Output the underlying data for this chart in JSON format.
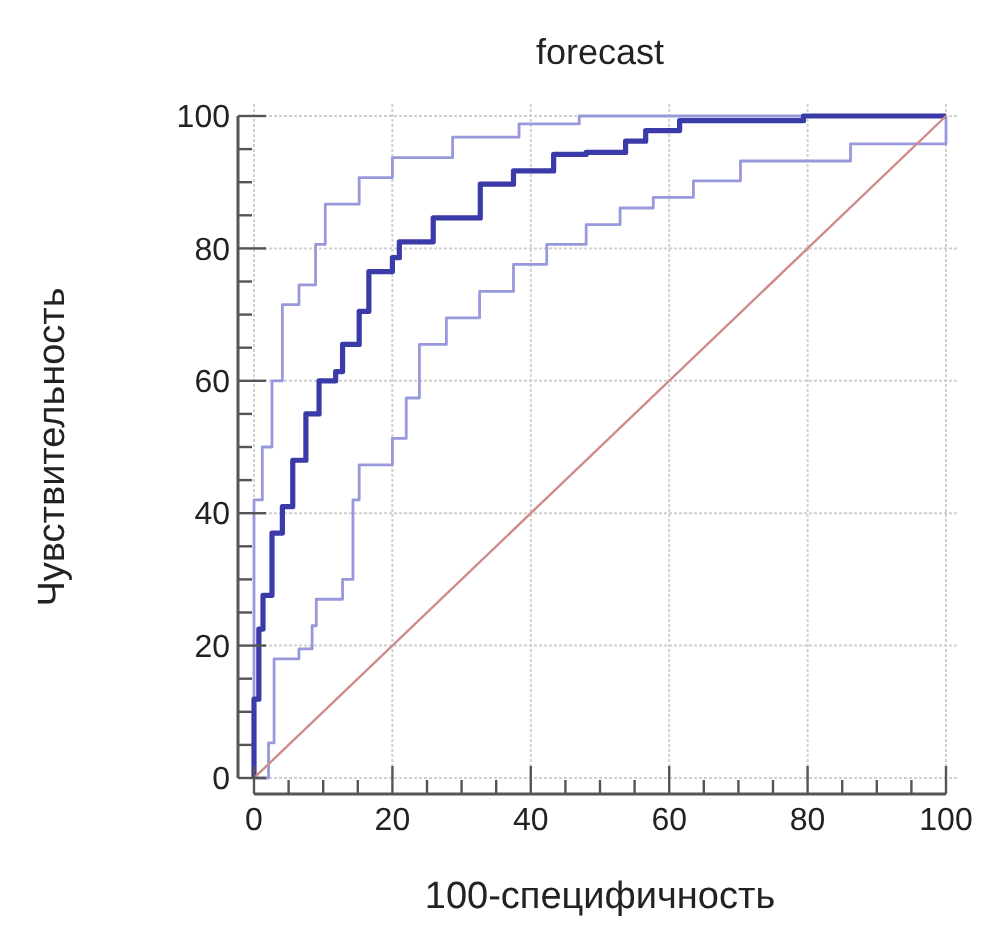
{
  "chart_data": {
    "type": "step",
    "title": "forecast",
    "xlabel": "100-специфичность",
    "ylabel": "Чувствительность",
    "xlim": [
      0,
      100
    ],
    "ylim": [
      0,
      100
    ],
    "xticks": [
      0,
      {
        "value": 5,
        "label": null
      },
      {
        "value": 10,
        "label": null
      },
      {
        "value": 15,
        "label": null
      },
      20,
      {
        "value": 25,
        "label": null
      },
      {
        "value": 30,
        "label": null
      },
      {
        "value": 35,
        "label": null
      },
      40,
      {
        "value": 45,
        "label": null
      },
      {
        "value": 50,
        "label": null
      },
      {
        "value": 55,
        "label": null
      },
      60,
      {
        "value": 65,
        "label": null
      },
      {
        "value": 70,
        "label": null
      },
      {
        "value": 75,
        "label": null
      },
      80,
      {
        "value": 85,
        "label": null
      },
      {
        "value": 90,
        "label": null
      },
      {
        "value": 95,
        "label": null
      },
      100
    ],
    "yticks": [
      0,
      {
        "value": 5,
        "label": null
      },
      {
        "value": 10,
        "label": null
      },
      {
        "value": 15,
        "label": null
      },
      20,
      {
        "value": 25,
        "label": null
      },
      {
        "value": 30,
        "label": null
      },
      {
        "value": 35,
        "label": null
      },
      40,
      {
        "value": 45,
        "label": null
      },
      {
        "value": 50,
        "label": null
      },
      {
        "value": 55,
        "label": null
      },
      60,
      {
        "value": 65,
        "label": null
      },
      {
        "value": 70,
        "label": null
      },
      {
        "value": 75,
        "label": null
      },
      80,
      {
        "value": 85,
        "label": null
      },
      {
        "value": 90,
        "label": null
      },
      {
        "value": 95,
        "label": null
      },
      100
    ],
    "grid": true,
    "series": [
      {
        "color": "#9898dc",
        "x": [
          0,
          0,
          1.2,
          2.6,
          4.1,
          6.5,
          8.9,
          10.3,
          15.2,
          20,
          28.7,
          38.3,
          47,
          100
        ],
        "values": [
          0,
          42,
          50,
          60,
          71.5,
          74.5,
          80.6,
          86.7,
          90.7,
          93.7,
          96.8,
          98.8,
          100,
          100
        ]
      },
      {
        "color": "#9898dc",
        "x": [
          0,
          2.1,
          2.9,
          6.5,
          8.4,
          9,
          12.8,
          14.3,
          15.2,
          20,
          22,
          23.9,
          27.8,
          32.6,
          37.5,
          42.3,
          48,
          52.9,
          57.7,
          63.5,
          70.3,
          86.2,
          100
        ],
        "values": [
          0,
          5.3,
          18,
          19.5,
          23,
          27,
          30,
          42,
          47.3,
          51.3,
          57.4,
          65.5,
          69.5,
          73.5,
          77.6,
          80.6,
          83.6,
          86.1,
          87.7,
          90.2,
          93.2,
          95.8,
          100
        ]
      },
      {
        "color": "#3a3aa8",
        "x": [
          0,
          0,
          0.7,
          1.3,
          2.6,
          4.1,
          5.6,
          7.5,
          9.4,
          11.8,
          12.8,
          15.2,
          16.6,
          20,
          21,
          25.9,
          32.7,
          37.5,
          43.3,
          48,
          53.7,
          56.6,
          61.5,
          79.4,
          100
        ],
        "values": [
          0,
          11.9,
          22.5,
          27.6,
          37,
          41,
          48,
          55,
          60,
          61.4,
          65.5,
          70.5,
          76.5,
          78.6,
          81,
          84.6,
          89.7,
          91.7,
          94.2,
          94.5,
          96.2,
          97.8,
          99.3,
          100,
          100
        ]
      },
      {
        "type": "line",
        "color": "#d08a8a",
        "x": [
          0,
          100
        ],
        "values": [
          0,
          100
        ]
      }
    ]
  }
}
